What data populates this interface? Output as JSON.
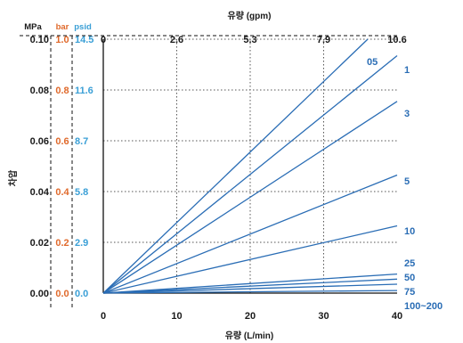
{
  "chart_data": {
    "type": "line",
    "title": "",
    "xlabel_bottom": "유량 (L/min)",
    "xlabel_top": "유량 (gpm)",
    "ylabel": "차압",
    "x_ticks_bottom": [
      "0",
      "10",
      "20",
      "30",
      "40"
    ],
    "x_ticks_top": [
      "0",
      "2.6",
      "5.3",
      "7.9",
      "10.6"
    ],
    "xlim": [
      0,
      40
    ],
    "ylim": [
      0,
      0.1
    ],
    "y_columns": [
      {
        "unit": "MPa",
        "ticks": [
          "0.00",
          "0.02",
          "0.04",
          "0.06",
          "0.08",
          "0.10"
        ],
        "color": "#1a1a1a"
      },
      {
        "unit": "bar",
        "ticks": [
          "0.0",
          "0.2",
          "0.4",
          "0.6",
          "0.8",
          "1.0"
        ],
        "color": "#e06a2c"
      },
      {
        "unit": "psid",
        "ticks": [
          "0.0",
          "2.9",
          "5.8",
          "8.7",
          "11.6",
          "14.5"
        ],
        "color": "#3a9fd6"
      }
    ],
    "grid": true,
    "series_color": "#2a6db5",
    "series": [
      {
        "name": "05",
        "x": [
          0,
          36
        ],
        "y": [
          0,
          0.1
        ]
      },
      {
        "name": "1",
        "x": [
          0,
          40
        ],
        "y": [
          0,
          0.0935
        ]
      },
      {
        "name": "3",
        "x": [
          0,
          40
        ],
        "y": [
          0,
          0.0755
        ]
      },
      {
        "name": "5",
        "x": [
          0,
          40
        ],
        "y": [
          0,
          0.0465
        ]
      },
      {
        "name": "10",
        "x": [
          0,
          40
        ],
        "y": [
          0,
          0.0265
        ]
      },
      {
        "name": "25",
        "x": [
          0,
          40
        ],
        "y": [
          0,
          0.0075
        ]
      },
      {
        "name": "50",
        "x": [
          0,
          40
        ],
        "y": [
          0,
          0.0055
        ]
      },
      {
        "name": "75",
        "x": [
          0,
          40
        ],
        "y": [
          0,
          0.0035
        ]
      },
      {
        "name": "100~200",
        "x": [
          0,
          40
        ],
        "y": [
          0,
          0.001
        ]
      }
    ]
  }
}
